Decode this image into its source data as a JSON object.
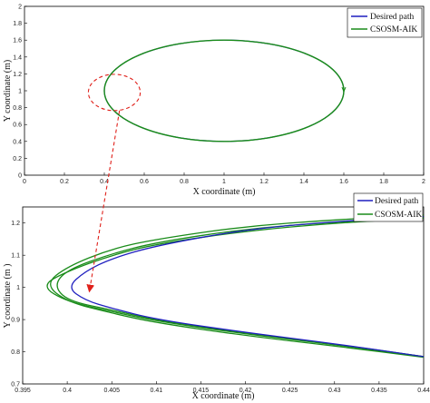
{
  "chart_data": [
    {
      "type": "line",
      "xlabel": "X coordinate (m)",
      "ylabel": "Y  coordinate (m)",
      "xlim": [
        0,
        2
      ],
      "ylim": [
        0,
        2
      ],
      "xticks": [
        "0",
        "0.2",
        "0.4",
        "0.6",
        "0.8",
        "1",
        "1.2",
        "1.4",
        "1.6",
        "1.8",
        "2"
      ],
      "yticks": [
        "0",
        "0.2",
        "0.4",
        "0.6",
        "0.8",
        "1",
        "1.2",
        "1.4",
        "1.6",
        "1.8",
        "2"
      ],
      "grid": false,
      "legend_position": "top-right",
      "series": [
        {
          "name": "Desired path",
          "color": "#1f1fbf",
          "shape": "ellipse",
          "center": [
            1.0,
            1.0
          ],
          "radius_x": 0.6,
          "radius_y": 0.6
        },
        {
          "name": "CSOSM-AIK",
          "color": "#1a8c1a",
          "shape": "ellipse",
          "center": [
            1.0,
            1.0
          ],
          "radius_x": 0.6,
          "radius_y": 0.6
        }
      ],
      "annotation": {
        "shape": "dashed-ellipse",
        "color": "#e0201a",
        "center": [
          0.45,
          0.98
        ],
        "width": 0.26,
        "height": 0.43
      }
    },
    {
      "type": "line",
      "xlabel": "X coordinate (m)",
      "ylabel": "Y  coordinate (m )",
      "xlim": [
        0.395,
        0.44
      ],
      "ylim": [
        0.7,
        1.25
      ],
      "xticks": [
        "0.395",
        "0.4",
        "0.405",
        "0.41",
        "0.415",
        "0.42",
        "0.425",
        "0.43",
        "0.435",
        "0.44"
      ],
      "yticks": [
        "0.7",
        "0.8",
        "0.9",
        "1",
        "1.1",
        "1.2"
      ],
      "grid": false,
      "legend_position": "top-right",
      "series": [
        {
          "name": "Desired path",
          "color": "#1f1fbf",
          "x": [
            0.44,
            0.43,
            0.42,
            0.41,
            0.405,
            0.402,
            0.4,
            0.402,
            0.405,
            0.41,
            0.42,
            0.43,
            0.44
          ],
          "y": [
            1.22,
            1.205,
            1.18,
            1.13,
            1.09,
            1.05,
            1.0,
            0.96,
            0.935,
            0.9,
            0.86,
            0.825,
            0.785
          ]
        },
        {
          "name": "CSOSM-AIK",
          "color": "#1a8c1a",
          "x": [
            0.44,
            0.43,
            0.42,
            0.41,
            0.405,
            0.4,
            0.397,
            0.4,
            0.405,
            0.41,
            0.42,
            0.43,
            0.44
          ],
          "y": [
            1.215,
            1.2,
            1.175,
            1.135,
            1.1,
            1.05,
            1.005,
            0.955,
            0.925,
            0.895,
            0.855,
            0.822,
            0.785
          ]
        },
        {
          "name": "",
          "color": "#1a8c1a",
          "x": [
            0.44,
            0.43,
            0.42,
            0.41,
            0.405,
            0.4,
            0.3975,
            0.4,
            0.405,
            0.41,
            0.42,
            0.43,
            0.44
          ],
          "y": [
            1.225,
            1.21,
            1.19,
            1.15,
            1.12,
            1.065,
            1.01,
            0.955,
            0.92,
            0.89,
            0.85,
            0.818,
            0.783
          ]
        },
        {
          "name": "",
          "color": "#1a8c1a",
          "x": [
            0.44,
            0.43,
            0.42,
            0.41,
            0.405,
            0.4,
            0.3985,
            0.4,
            0.405,
            0.41,
            0.42,
            0.43,
            0.44
          ],
          "y": [
            1.218,
            1.203,
            1.182,
            1.14,
            1.105,
            1.055,
            1.007,
            0.958,
            0.93,
            0.898,
            0.858,
            0.824,
            0.785
          ]
        }
      ],
      "arrow_target": [
        0.4025,
        0.99
      ]
    }
  ]
}
